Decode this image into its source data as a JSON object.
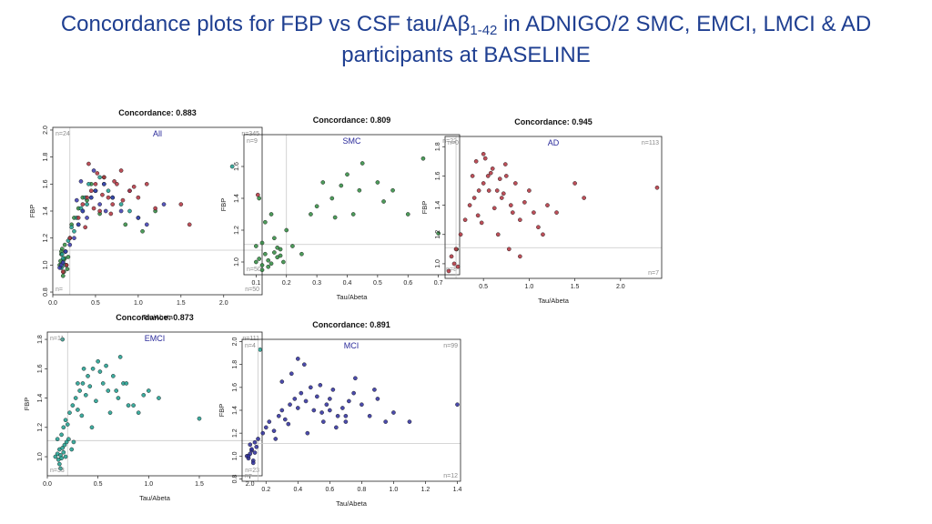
{
  "slide": {
    "title_pre": "Concordance plots for FBP vs CSF tau/Aβ",
    "title_sub": "1-42",
    "title_post": " in ADNIGO/2 SMC, EMCI, LMCI & AD",
    "title_line2": "participants at BASELINE"
  },
  "colors": {
    "title": "#1f3f91",
    "axis": "#222222",
    "refline": "#c8c8c8",
    "group_label": "#2a2a9a",
    "count_text": "#8a8a8a"
  },
  "chart_data": [
    {
      "type": "scatter",
      "title": "Concordance: 0.883",
      "group_label": "All",
      "xlabel": "Tau/Abeta",
      "ylabel": "FBP",
      "xlim": [
        0.0,
        2.45
      ],
      "ylim": [
        0.78,
        2.02
      ],
      "xticks": [
        "0.0",
        "0.5",
        "1.0",
        "1.5",
        "2.0"
      ],
      "xtick_values": [
        0.0,
        0.5,
        1.0,
        1.5,
        2.0
      ],
      "yticks": [
        "0.8",
        "1.0",
        "1.2",
        "1.4",
        "1.6",
        "1.8",
        "2.0"
      ],
      "ytick_values": [
        0.8,
        1.0,
        1.2,
        1.4,
        1.6,
        1.8,
        2.0
      ],
      "cutoff_x": 0.2,
      "cutoff_y": 1.11,
      "counts": {
        "top_left": "n=24",
        "top_right": "n=345",
        "bottom_left": "n=",
        "bottom_right": "n=50"
      },
      "series": [
        {
          "color": "#2e8b3e",
          "x": [
            0.08,
            0.1,
            0.12,
            0.14,
            0.1,
            0.13,
            0.15,
            0.11,
            0.09,
            0.16,
            0.12,
            0.14,
            0.18,
            0.2,
            0.22,
            0.25,
            0.3,
            0.35,
            0.4,
            0.45,
            0.5,
            0.55,
            0.6,
            0.7,
            0.85,
            1.05,
            1.2,
            0.17,
            0.13,
            0.1
          ],
          "y": [
            1.0,
            0.98,
            1.02,
            1.05,
            1.08,
            0.95,
            1.1,
            1.12,
            1.03,
            1.0,
            0.92,
            1.15,
            1.06,
            1.2,
            1.3,
            1.35,
            1.42,
            1.5,
            1.48,
            1.6,
            1.55,
            1.38,
            1.65,
            1.5,
            1.3,
            1.25,
            1.4,
            0.97,
            1.04,
            1.1
          ]
        },
        {
          "color": "#1c9e8e",
          "x": [
            0.1,
            0.12,
            0.15,
            0.2,
            0.25,
            0.3,
            0.35,
            0.4,
            0.45,
            0.5,
            0.6,
            0.7,
            0.8,
            0.9,
            1.0,
            2.1,
            0.18,
            0.22,
            0.28,
            0.33,
            0.38,
            0.42,
            0.55,
            0.65,
            0.14,
            0.11
          ],
          "y": [
            0.98,
            1.05,
            1.1,
            1.2,
            1.25,
            1.3,
            1.4,
            1.45,
            1.5,
            1.55,
            1.6,
            1.5,
            1.45,
            1.4,
            1.35,
            1.73,
            1.18,
            1.28,
            1.35,
            1.42,
            1.5,
            1.6,
            1.65,
            1.55,
            1.0,
            1.08
          ]
        },
        {
          "color": "#3a3ab0",
          "x": [
            0.08,
            0.1,
            0.12,
            0.15,
            0.2,
            0.25,
            0.3,
            0.35,
            0.4,
            0.45,
            0.5,
            0.55,
            0.6,
            0.7,
            0.8,
            0.9,
            1.0,
            1.1,
            1.3,
            0.33,
            0.48,
            0.62,
            0.28
          ],
          "y": [
            0.98,
            1.0,
            1.02,
            1.1,
            1.15,
            1.2,
            1.3,
            1.4,
            1.35,
            1.5,
            1.55,
            1.45,
            1.6,
            1.5,
            1.4,
            1.55,
            1.35,
            1.3,
            1.45,
            1.62,
            1.7,
            1.4,
            1.48
          ]
        },
        {
          "color": "#b2303c",
          "x": [
            0.2,
            0.3,
            0.35,
            0.4,
            0.45,
            0.5,
            0.55,
            0.6,
            0.65,
            0.7,
            0.75,
            0.8,
            0.9,
            1.0,
            1.1,
            1.2,
            1.5,
            1.6,
            2.4,
            0.42,
            0.52,
            0.58,
            0.68,
            0.72,
            0.82,
            0.95,
            0.12,
            0.16,
            0.38,
            0.48
          ],
          "y": [
            1.2,
            1.35,
            1.45,
            1.5,
            1.55,
            1.6,
            1.4,
            1.65,
            1.5,
            1.45,
            1.6,
            1.7,
            1.55,
            1.5,
            1.6,
            1.42,
            1.45,
            1.3,
            1.52,
            1.75,
            1.68,
            1.52,
            1.38,
            1.62,
            1.48,
            1.58,
            0.95,
            1.0,
            1.28,
            1.42
          ]
        }
      ]
    },
    {
      "type": "scatter",
      "title": "Concordance: 0.809",
      "group_label": "SMC",
      "xlabel": "Tau/Abeta",
      "ylabel": "FBP",
      "xlim": [
        0.06,
        0.77
      ],
      "ylim": [
        0.92,
        1.8
      ],
      "xticks": [
        "0.1",
        "0.2",
        "0.3",
        "0.4",
        "0.5",
        "0.6",
        "0.7"
      ],
      "xtick_values": [
        0.1,
        0.2,
        0.3,
        0.4,
        0.5,
        0.6,
        0.7
      ],
      "yticks": [
        "1.0",
        "1.2",
        "1.4",
        "1.6"
      ],
      "ytick_values": [
        1.0,
        1.2,
        1.4,
        1.6
      ],
      "cutoff_x": 0.2,
      "cutoff_y": 1.11,
      "counts": {
        "top_left": "n=9",
        "top_right": "n=22",
        "bottom_left": "n=50",
        "bottom_right": "n=8"
      },
      "series": [
        {
          "color": "#2e8b3e",
          "x": [
            0.1,
            0.11,
            0.12,
            0.13,
            0.14,
            0.15,
            0.16,
            0.17,
            0.18,
            0.19,
            0.1,
            0.12,
            0.14,
            0.16,
            0.18,
            0.11,
            0.13,
            0.15,
            0.2,
            0.22,
            0.25,
            0.3,
            0.32,
            0.35,
            0.38,
            0.4,
            0.42,
            0.45,
            0.5,
            0.55,
            0.6,
            0.65,
            0.7,
            0.76,
            0.28,
            0.36,
            0.44,
            0.52,
            0.12,
            0.17
          ],
          "y": [
            1.0,
            1.02,
            0.98,
            1.05,
            1.01,
            0.99,
            1.06,
            1.03,
            1.08,
            1.0,
            1.1,
            1.12,
            0.97,
            1.15,
            1.04,
            1.4,
            1.25,
            1.3,
            1.2,
            1.1,
            1.05,
            1.35,
            1.5,
            1.4,
            1.48,
            1.55,
            1.3,
            1.62,
            1.5,
            1.45,
            1.3,
            1.65,
            1.18,
            1.08,
            1.3,
            1.28,
            1.45,
            1.38,
            0.95,
            1.09
          ]
        }
      ]
    },
    {
      "type": "scatter",
      "title": "Concordance: 0.945",
      "group_label": "AD",
      "xlabel": "Tau/Abeta",
      "ylabel": "FBP",
      "xlim": [
        0.08,
        2.45
      ],
      "ylim": [
        0.9,
        1.87
      ],
      "xticks": [
        "0.5",
        "1.0",
        "1.5",
        "2.0"
      ],
      "xtick_values": [
        0.5,
        1.0,
        1.5,
        2.0
      ],
      "yticks": [
        "1.0",
        "1.2",
        "1.4",
        "1.6",
        "1.8"
      ],
      "ytick_values": [
        1.0,
        1.2,
        1.4,
        1.6,
        1.8
      ],
      "cutoff_x": 0.2,
      "cutoff_y": 1.11,
      "counts": {
        "top_left": "n=0",
        "top_right": "n=113",
        "bottom_left": "",
        "bottom_right": "n=7"
      },
      "series": [
        {
          "color": "#b2303c",
          "x": [
            0.15,
            0.2,
            0.25,
            0.3,
            0.35,
            0.4,
            0.45,
            0.5,
            0.55,
            0.6,
            0.65,
            0.7,
            0.75,
            0.8,
            0.85,
            0.9,
            1.0,
            1.05,
            1.1,
            1.2,
            1.3,
            1.5,
            1.6,
            2.4,
            0.42,
            0.52,
            0.58,
            0.68,
            0.72,
            0.82,
            0.95,
            0.48,
            0.62,
            0.38,
            0.56,
            0.66,
            0.78,
            0.12,
            0.18,
            0.22,
            0.9,
            1.15,
            0.74,
            0.5,
            0.44
          ],
          "y": [
            1.05,
            1.1,
            1.2,
            1.3,
            1.4,
            1.45,
            1.5,
            1.55,
            1.6,
            1.65,
            1.5,
            1.45,
            1.6,
            1.4,
            1.55,
            1.3,
            1.5,
            1.35,
            1.25,
            1.4,
            1.35,
            1.55,
            1.45,
            1.52,
            1.7,
            1.72,
            1.62,
            1.58,
            1.48,
            1.35,
            1.42,
            1.28,
            1.38,
            1.6,
            1.5,
            1.2,
            1.1,
            0.95,
            1.0,
            0.98,
            1.05,
            1.2,
            1.68,
            1.75,
            1.33
          ]
        }
      ]
    },
    {
      "type": "scatter",
      "title": "Concordance: 0.873",
      "group_label": "EMCI",
      "xlabel": "Tau/Abeta",
      "ylabel": "FBP",
      "xlim": [
        0.0,
        2.12
      ],
      "ylim": [
        0.87,
        1.85
      ],
      "xticks": [
        "0.0",
        "0.5",
        "1.0",
        "1.5",
        "2.0"
      ],
      "xtick_values": [
        0.0,
        0.5,
        1.0,
        1.5,
        2.0
      ],
      "yticks": [
        "1.0",
        "1.2",
        "1.4",
        "1.6",
        "1.8"
      ],
      "ytick_values": [
        1.0,
        1.2,
        1.4,
        1.6,
        1.8
      ],
      "cutoff_x": 0.2,
      "cutoff_y": 1.11,
      "counts": {
        "top_left": "n=11",
        "top_right": "n=111",
        "bottom_left": "n=33",
        "bottom_right": "n=23"
      },
      "series": [
        {
          "color": "#1c9e8e",
          "x": [
            0.08,
            0.1,
            0.11,
            0.12,
            0.13,
            0.14,
            0.15,
            0.16,
            0.17,
            0.18,
            0.19,
            0.1,
            0.12,
            0.14,
            0.16,
            0.18,
            0.2,
            0.22,
            0.25,
            0.28,
            0.3,
            0.32,
            0.35,
            0.38,
            0.4,
            0.42,
            0.45,
            0.5,
            0.55,
            0.6,
            0.65,
            0.7,
            0.75,
            0.8,
            0.9,
            1.0,
            1.1,
            1.5,
            2.1,
            0.26,
            0.34,
            0.44,
            0.48,
            0.52,
            0.58,
            0.62,
            0.68,
            0.72,
            0.78,
            0.85,
            0.95,
            0.24,
            0.3,
            0.36,
            0.15,
            0.21,
            0.13
          ],
          "y": [
            1.0,
            1.02,
            0.98,
            1.05,
            1.01,
            0.99,
            1.06,
            1.03,
            1.08,
            1.0,
            1.1,
            1.12,
            0.95,
            1.15,
            1.2,
            1.25,
            1.22,
            1.3,
            1.35,
            1.4,
            1.32,
            1.45,
            1.5,
            1.42,
            1.55,
            1.48,
            1.6,
            1.65,
            1.5,
            1.45,
            1.55,
            1.4,
            1.5,
            1.35,
            1.3,
            1.45,
            1.4,
            1.26,
            1.73,
            1.1,
            1.28,
            1.2,
            1.38,
            1.58,
            1.62,
            1.3,
            1.45,
            1.68,
            1.5,
            1.35,
            1.42,
            1.05,
            1.5,
            1.6,
            1.8,
            1.12,
            0.92
          ]
        }
      ]
    },
    {
      "type": "scatter",
      "title": "Concordance: 0.891",
      "group_label": "MCI",
      "xlabel": "Tau/Abeta",
      "ylabel": "FBP",
      "xlim": [
        0.05,
        1.42
      ],
      "ylim": [
        0.78,
        2.02
      ],
      "xticks": [
        "0.2",
        "0.4",
        "0.6",
        "0.8",
        "1.0",
        "1.2",
        "1.4"
      ],
      "xtick_values": [
        0.2,
        0.4,
        0.6,
        0.8,
        1.0,
        1.2,
        1.4
      ],
      "yticks": [
        "0.8",
        "1.0",
        "1.2",
        "1.4",
        "1.6",
        "1.8",
        "2.0"
      ],
      "ytick_values": [
        0.8,
        1.0,
        1.2,
        1.4,
        1.6,
        1.8,
        2.0
      ],
      "cutoff_x": 0.15,
      "cutoff_y": 1.11,
      "counts": {
        "top_left": "n=4",
        "top_right": "n=99",
        "bottom_left": "n=",
        "bottom_right": "n=12"
      },
      "series": [
        {
          "color": "#2b2b9e",
          "x": [
            0.08,
            0.09,
            0.1,
            0.11,
            0.12,
            0.13,
            0.14,
            0.1,
            0.12,
            0.09,
            0.11,
            0.13,
            0.15,
            0.18,
            0.2,
            0.22,
            0.25,
            0.28,
            0.3,
            0.32,
            0.35,
            0.38,
            0.4,
            0.42,
            0.45,
            0.48,
            0.5,
            0.52,
            0.55,
            0.58,
            0.6,
            0.62,
            0.65,
            0.68,
            0.7,
            0.72,
            0.75,
            0.8,
            0.85,
            0.9,
            0.95,
            1.0,
            1.1,
            1.4,
            0.3,
            0.36,
            0.44,
            0.54,
            0.64,
            0.76,
            0.88,
            0.26,
            0.34,
            0.46,
            0.56,
            0.4,
            0.6,
            0.7
          ],
          "y": [
            1.0,
            0.98,
            1.02,
            1.05,
            0.96,
            1.03,
            1.08,
            1.1,
            0.94,
            1.0,
            1.06,
            1.12,
            1.15,
            1.2,
            1.25,
            1.3,
            1.22,
            1.35,
            1.4,
            1.32,
            1.45,
            1.5,
            1.42,
            1.55,
            1.48,
            1.6,
            1.4,
            1.52,
            1.38,
            1.45,
            1.5,
            1.58,
            1.35,
            1.42,
            1.3,
            1.48,
            1.55,
            1.45,
            1.35,
            1.5,
            1.3,
            1.38,
            1.3,
            1.45,
            1.65,
            1.72,
            1.8,
            1.62,
            1.25,
            1.68,
            1.58,
            1.15,
            1.28,
            1.2,
            1.3,
            1.85,
            1.4,
            1.35
          ]
        }
      ]
    }
  ]
}
